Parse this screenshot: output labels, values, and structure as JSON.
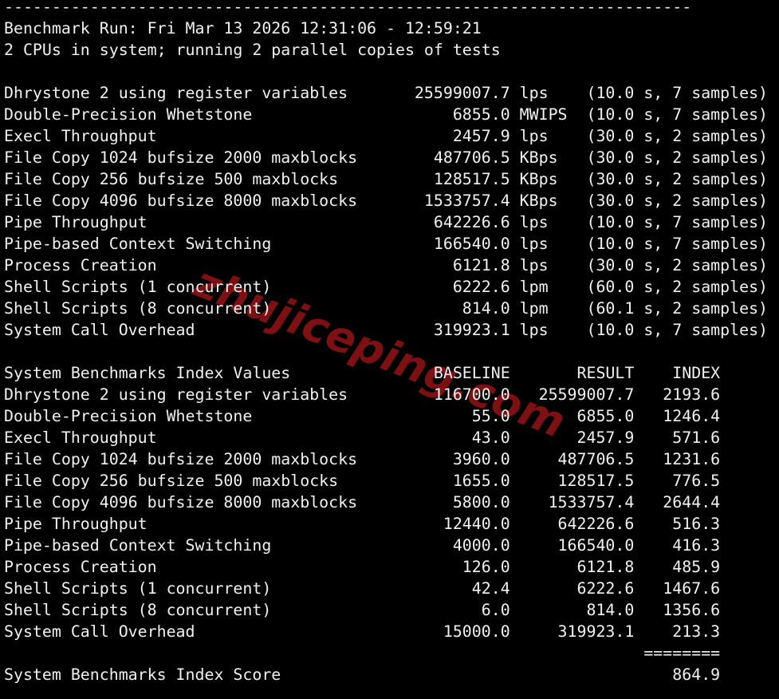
{
  "colors": {
    "background": "#000000",
    "foreground": "#f1f1f1",
    "watermark_red": "#7c1012"
  },
  "watermark": {
    "text": "zhujiceping.com"
  },
  "terminal": {
    "separator": "------------------------------------------------------------------------",
    "run_info": "Benchmark Run: Fri Mar 13 2026 12:31:06 - 12:59:21",
    "cpu_info": "2 CPUs in system; running 2 parallel copies of tests",
    "results": [
      {
        "name": "Dhrystone 2 using register variables",
        "value": "25599007.7",
        "unit": "lps",
        "duration": "(10.0 s, 7 samples)"
      },
      {
        "name": "Double-Precision Whetstone",
        "value": "6855.0",
        "unit": "MWIPS",
        "duration": "(10.0 s, 7 samples)"
      },
      {
        "name": "Execl Throughput",
        "value": "2457.9",
        "unit": "lps",
        "duration": "(30.0 s, 2 samples)"
      },
      {
        "name": "File Copy 1024 bufsize 2000 maxblocks",
        "value": "487706.5",
        "unit": "KBps",
        "duration": "(30.0 s, 2 samples)"
      },
      {
        "name": "File Copy 256 bufsize 500 maxblocks",
        "value": "128517.5",
        "unit": "KBps",
        "duration": "(30.0 s, 2 samples)"
      },
      {
        "name": "File Copy 4096 bufsize 8000 maxblocks",
        "value": "1533757.4",
        "unit": "KBps",
        "duration": "(30.0 s, 2 samples)"
      },
      {
        "name": "Pipe Throughput",
        "value": "642226.6",
        "unit": "lps",
        "duration": "(10.0 s, 7 samples)"
      },
      {
        "name": "Pipe-based Context Switching",
        "value": "166540.0",
        "unit": "lps",
        "duration": "(10.0 s, 7 samples)"
      },
      {
        "name": "Process Creation",
        "value": "6121.8",
        "unit": "lps",
        "duration": "(30.0 s, 2 samples)"
      },
      {
        "name": "Shell Scripts (1 concurrent)",
        "value": "6222.6",
        "unit": "lpm",
        "duration": "(60.0 s, 2 samples)"
      },
      {
        "name": "Shell Scripts (8 concurrent)",
        "value": "814.0",
        "unit": "lpm",
        "duration": "(60.1 s, 2 samples)"
      },
      {
        "name": "System Call Overhead",
        "value": "319923.1",
        "unit": "lps",
        "duration": "(10.0 s, 7 samples)"
      }
    ],
    "index_table": {
      "title": "System Benchmarks Index Values",
      "col_baseline": "BASELINE",
      "col_result": "RESULT",
      "col_index": "INDEX",
      "rows": [
        {
          "name": "Dhrystone 2 using register variables",
          "baseline": "116700.0",
          "result": "25599007.7",
          "index": "2193.6"
        },
        {
          "name": "Double-Precision Whetstone",
          "baseline": "55.0",
          "result": "6855.0",
          "index": "1246.4"
        },
        {
          "name": "Execl Throughput",
          "baseline": "43.0",
          "result": "2457.9",
          "index": "571.6"
        },
        {
          "name": "File Copy 1024 bufsize 2000 maxblocks",
          "baseline": "3960.0",
          "result": "487706.5",
          "index": "1231.6"
        },
        {
          "name": "File Copy 256 bufsize 500 maxblocks",
          "baseline": "1655.0",
          "result": "128517.5",
          "index": "776.5"
        },
        {
          "name": "File Copy 4096 bufsize 8000 maxblocks",
          "baseline": "5800.0",
          "result": "1533757.4",
          "index": "2644.4"
        },
        {
          "name": "Pipe Throughput",
          "baseline": "12440.0",
          "result": "642226.6",
          "index": "516.3"
        },
        {
          "name": "Pipe-based Context Switching",
          "baseline": "4000.0",
          "result": "166540.0",
          "index": "416.3"
        },
        {
          "name": "Process Creation",
          "baseline": "126.0",
          "result": "6121.8",
          "index": "485.9"
        },
        {
          "name": "Shell Scripts (1 concurrent)",
          "baseline": "42.4",
          "result": "6222.6",
          "index": "1467.6"
        },
        {
          "name": "Shell Scripts (8 concurrent)",
          "baseline": "6.0",
          "result": "814.0",
          "index": "1356.6"
        },
        {
          "name": "System Call Overhead",
          "baseline": "15000.0",
          "result": "319923.1",
          "index": "213.3"
        }
      ]
    },
    "score_separator": "========",
    "score_label": "System Benchmarks Index Score",
    "score": "864.9"
  }
}
